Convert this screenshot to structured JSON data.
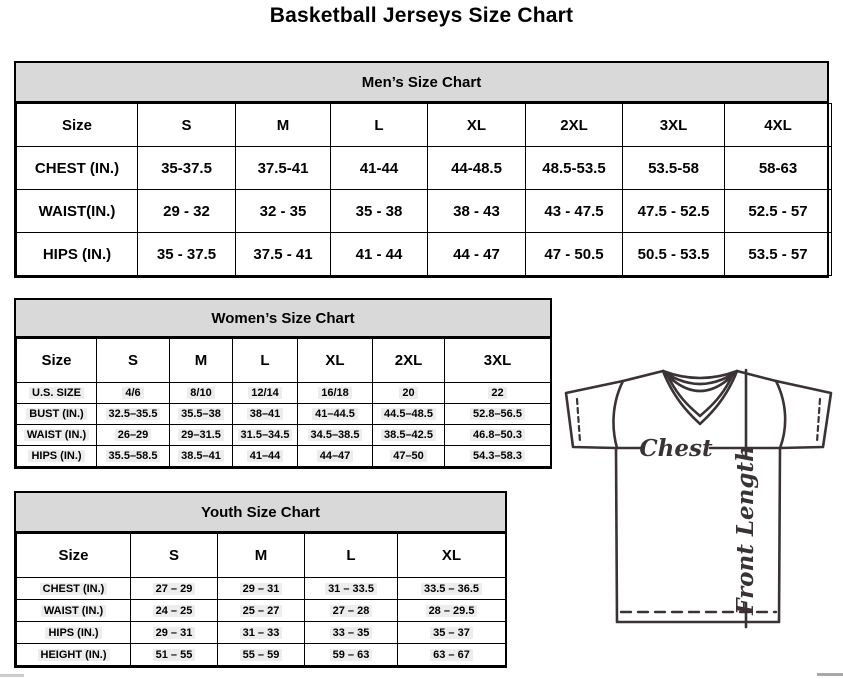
{
  "page_title": "Basketball Jerseys Size Chart",
  "colors": {
    "table_header_bg": "#d9d9d9",
    "border": "#000000",
    "jersey_line": "#3a3234"
  },
  "tables": {
    "men": {
      "title": "Men’s Size Chart",
      "columns": [
        "Size",
        "S",
        "M",
        "L",
        "XL",
        "2XL",
        "3XL",
        "4XL"
      ],
      "rows": [
        {
          "label": "CHEST (IN.)",
          "values": [
            "35-37.5",
            "37.5-41",
            "41-44",
            "44-48.5",
            "48.5-53.5",
            "53.5-58",
            "58-63"
          ]
        },
        {
          "label": "WAIST(IN.)",
          "values": [
            "29 - 32",
            "32 - 35",
            "35 - 38",
            "38 - 43",
            "43 - 47.5",
            "47.5 - 52.5",
            "52.5 - 57"
          ]
        },
        {
          "label": "HIPS (IN.)",
          "values": [
            "35 - 37.5",
            "37.5 - 41",
            "41 - 44",
            "44 - 47",
            "47 - 50.5",
            "50.5 - 53.5",
            "53.5 - 57"
          ]
        }
      ]
    },
    "women": {
      "title": "Women’s Size Chart",
      "columns": [
        "Size",
        "S",
        "M",
        "L",
        "XL",
        "2XL",
        "3XL"
      ],
      "rows": [
        {
          "label": "U.S. SIZE",
          "values": [
            "4/6",
            "8/10",
            "12/14",
            "16/18",
            "20",
            "22"
          ]
        },
        {
          "label": "BUST (IN.)",
          "values": [
            "32.5–35.5",
            "35.5–38",
            "38–41",
            "41–44.5",
            "44.5–48.5",
            "52.8–56.5"
          ]
        },
        {
          "label": "WAIST (IN.)",
          "values": [
            "26–29",
            "29–31.5",
            "31.5–34.5",
            "34.5–38.5",
            "38.5–42.5",
            "46.8–50.3"
          ]
        },
        {
          "label": "HIPS (IN.)",
          "values": [
            "35.5–58.5",
            "38.5–41",
            "41–44",
            "44–47",
            "47–50",
            "54.3–58.3"
          ]
        }
      ]
    },
    "youth": {
      "title": "Youth Size Chart",
      "columns": [
        "Size",
        "S",
        "M",
        "L",
        "XL"
      ],
      "rows": [
        {
          "label": "CHEST (IN.)",
          "values": [
            "27 – 29",
            "29 – 31",
            "31 – 33.5",
            "33.5 – 36.5"
          ]
        },
        {
          "label": "WAIST (IN.)",
          "values": [
            "24 – 25",
            "25 – 27",
            "27 – 28",
            "28 – 29.5"
          ]
        },
        {
          "label": "HIPS (IN.)",
          "values": [
            "29 – 31",
            "31 – 33",
            "33 – 35",
            "35 – 37"
          ]
        },
        {
          "label": "HEIGHT (IN.)",
          "values": [
            "51 – 55",
            "55 – 59",
            "59 – 63",
            "63 – 67"
          ]
        }
      ]
    }
  },
  "diagram": {
    "chest_label": "Chest",
    "front_length_label": "Front Length"
  }
}
